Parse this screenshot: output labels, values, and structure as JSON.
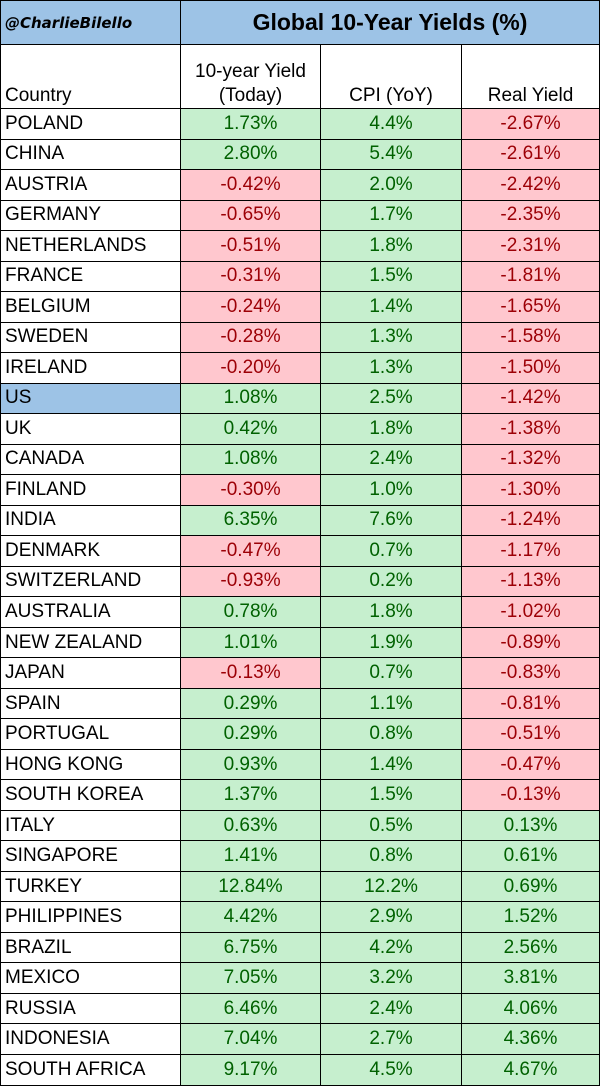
{
  "header": {
    "brand": "@CharlieBilello",
    "title": "Global 10-Year Yields (%)"
  },
  "columns": {
    "country": "Country",
    "yield_line1": "10-year Yield",
    "yield_line2": "(Today)",
    "cpi": "CPI (YoY)",
    "real": "Real Yield"
  },
  "colors": {
    "header_blue": "#9dc3e6",
    "positive_fill": "#c6efce",
    "positive_text": "#006100",
    "negative_fill": "#ffc7ce",
    "negative_text": "#9c0006"
  },
  "chart_data": {
    "type": "table",
    "title": "Global 10-Year Yields (%)",
    "highlighted_country": "US",
    "rows": [
      {
        "country": "POLAND",
        "yield": "1.73%",
        "cpi": "4.4%",
        "real": "-2.67%"
      },
      {
        "country": "CHINA",
        "yield": "2.80%",
        "cpi": "5.4%",
        "real": "-2.61%"
      },
      {
        "country": "AUSTRIA",
        "yield": "-0.42%",
        "cpi": "2.0%",
        "real": "-2.42%"
      },
      {
        "country": "GERMANY",
        "yield": "-0.65%",
        "cpi": "1.7%",
        "real": "-2.35%"
      },
      {
        "country": "NETHERLANDS",
        "yield": "-0.51%",
        "cpi": "1.8%",
        "real": "-2.31%"
      },
      {
        "country": "FRANCE",
        "yield": "-0.31%",
        "cpi": "1.5%",
        "real": "-1.81%"
      },
      {
        "country": "BELGIUM",
        "yield": "-0.24%",
        "cpi": "1.4%",
        "real": "-1.65%"
      },
      {
        "country": "SWEDEN",
        "yield": "-0.28%",
        "cpi": "1.3%",
        "real": "-1.58%"
      },
      {
        "country": "IRELAND",
        "yield": "-0.20%",
        "cpi": "1.3%",
        "real": "-1.50%"
      },
      {
        "country": "US",
        "yield": "1.08%",
        "cpi": "2.5%",
        "real": "-1.42%"
      },
      {
        "country": "UK",
        "yield": "0.42%",
        "cpi": "1.8%",
        "real": "-1.38%"
      },
      {
        "country": "CANADA",
        "yield": "1.08%",
        "cpi": "2.4%",
        "real": "-1.32%"
      },
      {
        "country": "FINLAND",
        "yield": "-0.30%",
        "cpi": "1.0%",
        "real": "-1.30%"
      },
      {
        "country": "INDIA",
        "yield": "6.35%",
        "cpi": "7.6%",
        "real": "-1.24%"
      },
      {
        "country": "DENMARK",
        "yield": "-0.47%",
        "cpi": "0.7%",
        "real": "-1.17%"
      },
      {
        "country": "SWITZERLAND",
        "yield": "-0.93%",
        "cpi": "0.2%",
        "real": "-1.13%"
      },
      {
        "country": "AUSTRALIA",
        "yield": "0.78%",
        "cpi": "1.8%",
        "real": "-1.02%"
      },
      {
        "country": "NEW ZEALAND",
        "yield": "1.01%",
        "cpi": "1.9%",
        "real": "-0.89%"
      },
      {
        "country": "JAPAN",
        "yield": "-0.13%",
        "cpi": "0.7%",
        "real": "-0.83%"
      },
      {
        "country": "SPAIN",
        "yield": "0.29%",
        "cpi": "1.1%",
        "real": "-0.81%"
      },
      {
        "country": "PORTUGAL",
        "yield": "0.29%",
        "cpi": "0.8%",
        "real": "-0.51%"
      },
      {
        "country": "HONG KONG",
        "yield": "0.93%",
        "cpi": "1.4%",
        "real": "-0.47%"
      },
      {
        "country": "SOUTH KOREA",
        "yield": "1.37%",
        "cpi": "1.5%",
        "real": "-0.13%"
      },
      {
        "country": "ITALY",
        "yield": "0.63%",
        "cpi": "0.5%",
        "real": "0.13%"
      },
      {
        "country": "SINGAPORE",
        "yield": "1.41%",
        "cpi": "0.8%",
        "real": "0.61%"
      },
      {
        "country": "TURKEY",
        "yield": "12.84%",
        "cpi": "12.2%",
        "real": "0.69%"
      },
      {
        "country": "PHILIPPINES",
        "yield": "4.42%",
        "cpi": "2.9%",
        "real": "1.52%"
      },
      {
        "country": "BRAZIL",
        "yield": "6.75%",
        "cpi": "4.2%",
        "real": "2.56%"
      },
      {
        "country": "MEXICO",
        "yield": "7.05%",
        "cpi": "3.2%",
        "real": "3.81%"
      },
      {
        "country": "RUSSIA",
        "yield": "6.46%",
        "cpi": "2.4%",
        "real": "4.06%"
      },
      {
        "country": "INDONESIA",
        "yield": "7.04%",
        "cpi": "2.7%",
        "real": "4.36%"
      },
      {
        "country": "SOUTH AFRICA",
        "yield": "9.17%",
        "cpi": "4.5%",
        "real": "4.67%"
      }
    ]
  }
}
